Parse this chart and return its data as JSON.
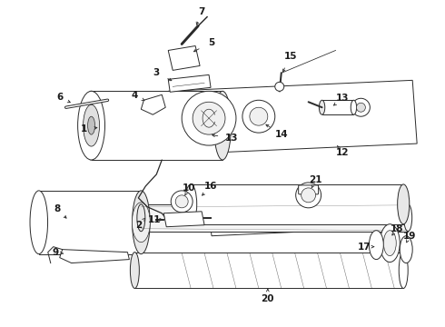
{
  "bg_color": "#ffffff",
  "line_color": "#2a2a2a",
  "text_color": "#1a1a1a",
  "figsize": [
    4.9,
    3.6
  ],
  "dpi": 100,
  "lw": 0.7,
  "label_fs": 7.5
}
